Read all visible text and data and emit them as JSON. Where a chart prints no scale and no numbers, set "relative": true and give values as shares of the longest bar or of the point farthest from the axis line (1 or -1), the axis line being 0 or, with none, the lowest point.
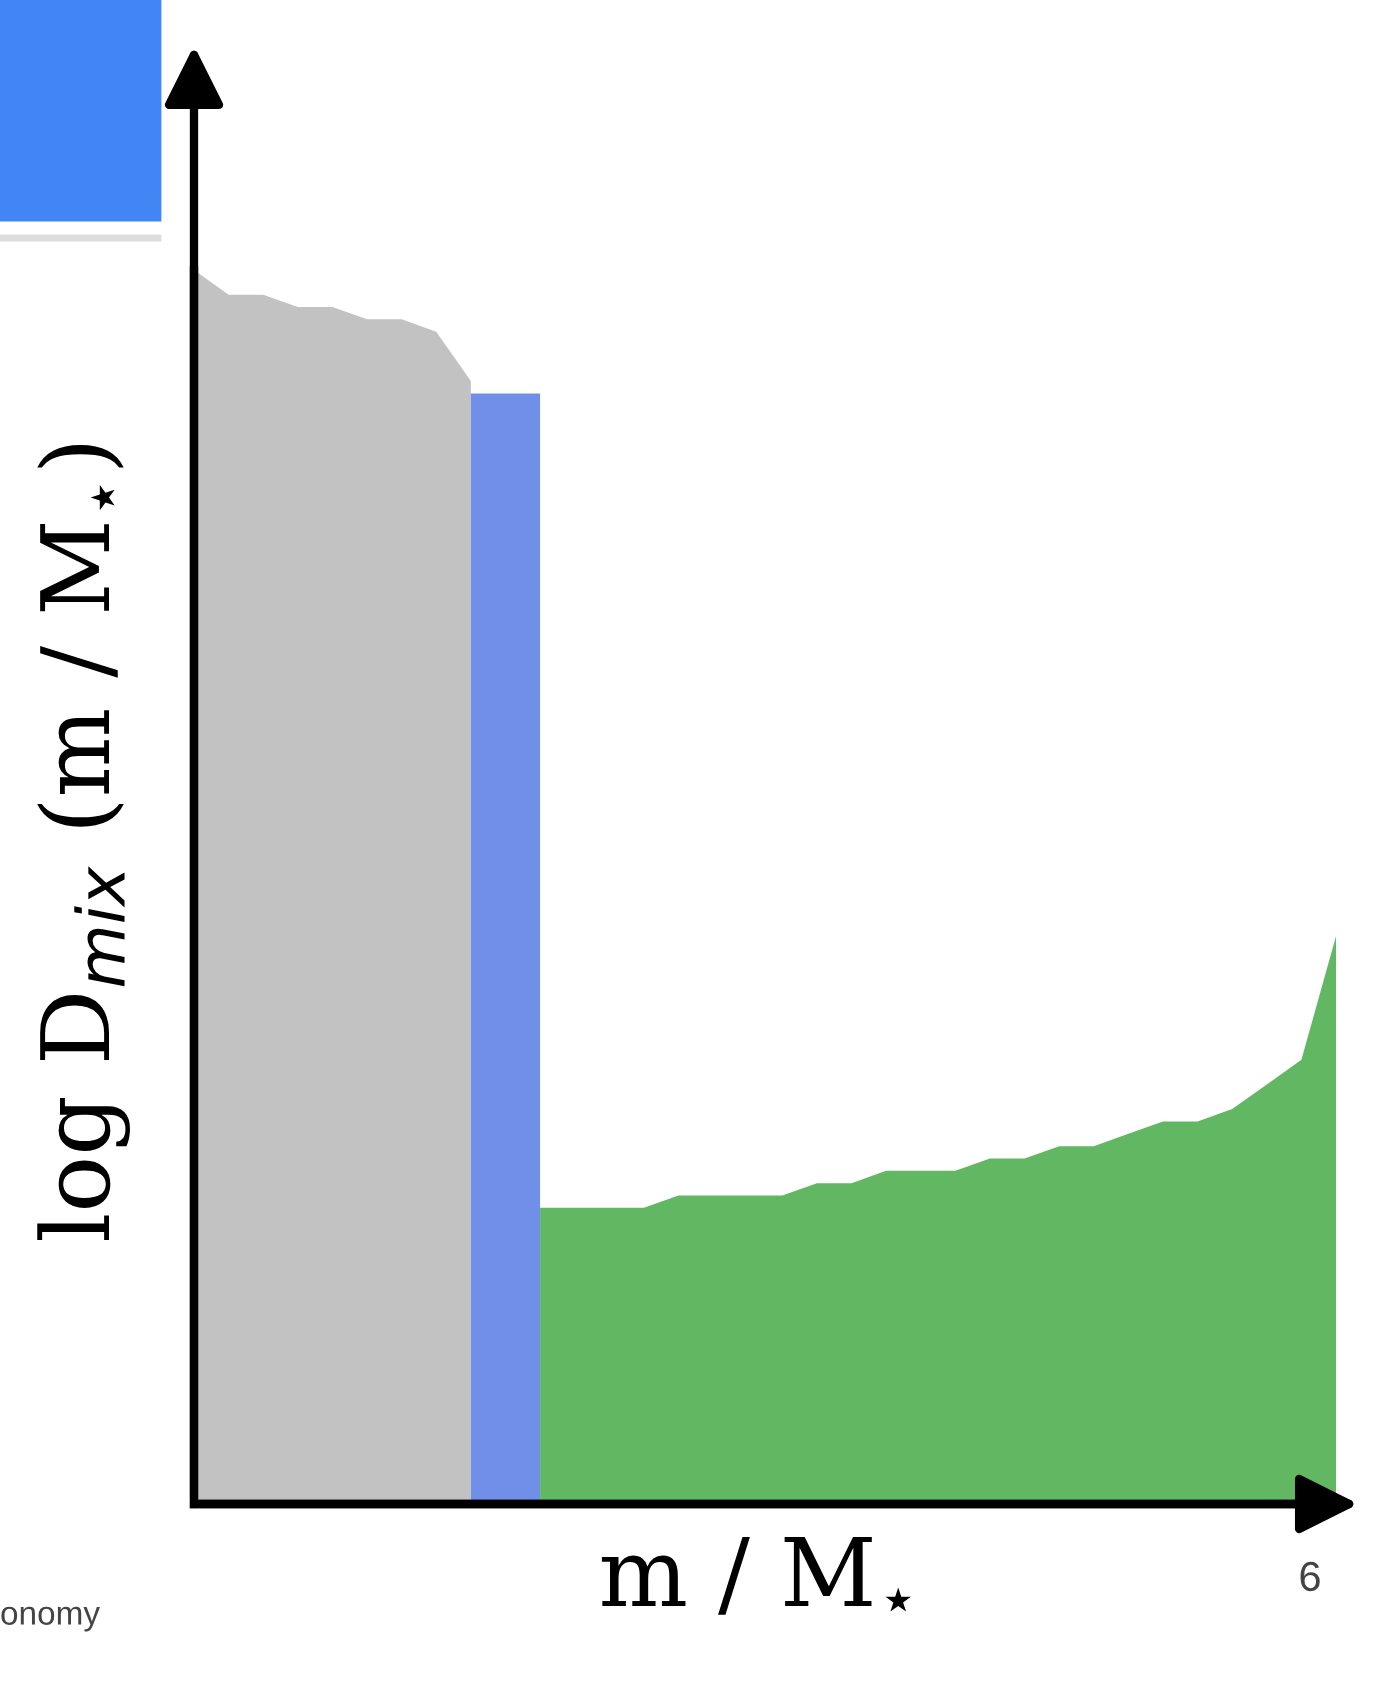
{
  "chart_data": {
    "type": "area",
    "relative": true,
    "xlabel": "m / M$_{⋆}$",
    "ylabel": "log D$_{mix}$ (m / M$_{⋆}$)",
    "categories": [
      null,
      null,
      null,
      null,
      null,
      null,
      null,
      null,
      null,
      null,
      null,
      null,
      null,
      null,
      null,
      null,
      null,
      null,
      null,
      null,
      null,
      null,
      null,
      null,
      null,
      null,
      null,
      null,
      null,
      null,
      null,
      null,
      null,
      null
    ],
    "series": [
      {
        "color": "#c2c2c2",
        "values": [
          1,
          0.98,
          0.98,
          0.97,
          0.97,
          0.96,
          0.96,
          0.95,
          0.91,
          null,
          null,
          null,
          null,
          null,
          null,
          null,
          null,
          null,
          null,
          null,
          null,
          null,
          null,
          null,
          null,
          null,
          null,
          null,
          null,
          null,
          null,
          null,
          null,
          null
        ]
      },
      {
        "color": "#6f8fe8",
        "values": [
          null,
          null,
          null,
          null,
          null,
          null,
          null,
          null,
          0.9,
          0.9,
          0.9,
          null,
          null,
          null,
          null,
          null,
          null,
          null,
          null,
          null,
          null,
          null,
          null,
          null,
          null,
          null,
          null,
          null,
          null,
          null,
          null,
          null,
          null,
          null
        ]
      },
      {
        "color": "#62b862",
        "values": [
          null,
          null,
          null,
          null,
          null,
          null,
          null,
          null,
          null,
          null,
          0.24,
          0.24,
          0.24,
          0.24,
          0.25,
          0.25,
          0.25,
          0.25,
          0.26,
          0.26,
          0.27,
          0.27,
          0.27,
          0.28,
          0.28,
          0.29,
          0.29,
          0.3,
          0.31,
          0.31,
          0.32,
          0.34,
          0.36,
          0.46
        ]
      }
    ],
    "annotations": [
      "6",
      "onomy"
    ]
  }
}
